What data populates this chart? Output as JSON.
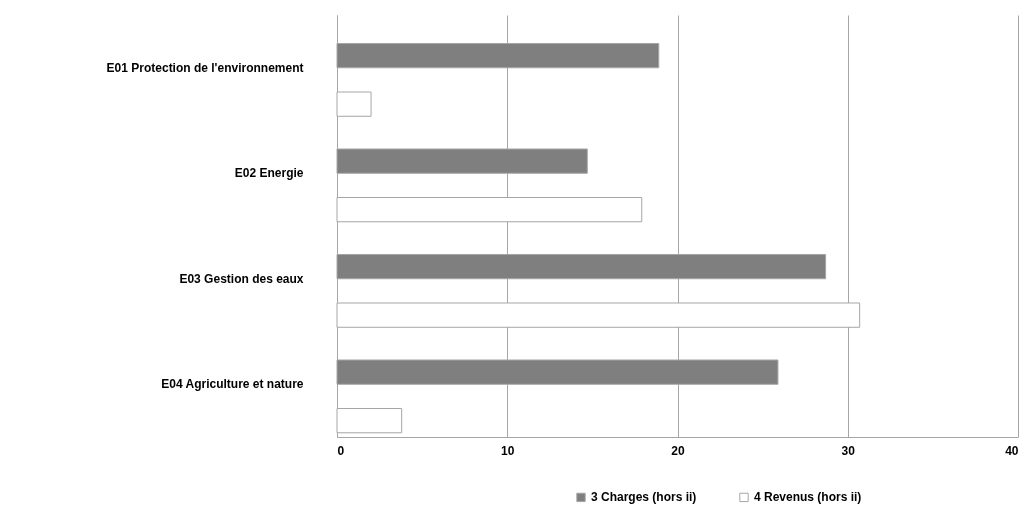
{
  "chart_data": {
    "type": "bar",
    "orientation": "horizontal",
    "categories": [
      "E01 Protection de l'environnement",
      "E02 Energie",
      "E03 Gestion des eaux",
      "E04 Agriculture et nature"
    ],
    "series": [
      {
        "name": "3 Charges (hors ii)",
        "color": "#7f7f7f",
        "values": [
          18.9,
          14.7,
          28.7,
          25.9
        ]
      },
      {
        "name": "4 Revenus (hors ii)",
        "color": "#ffffff",
        "values": [
          2.0,
          17.9,
          30.7,
          3.8
        ]
      }
    ],
    "xlim": [
      0,
      40
    ],
    "xticks": [
      0,
      10,
      20,
      30,
      40
    ],
    "grid": "x",
    "legend": "bottom right"
  }
}
